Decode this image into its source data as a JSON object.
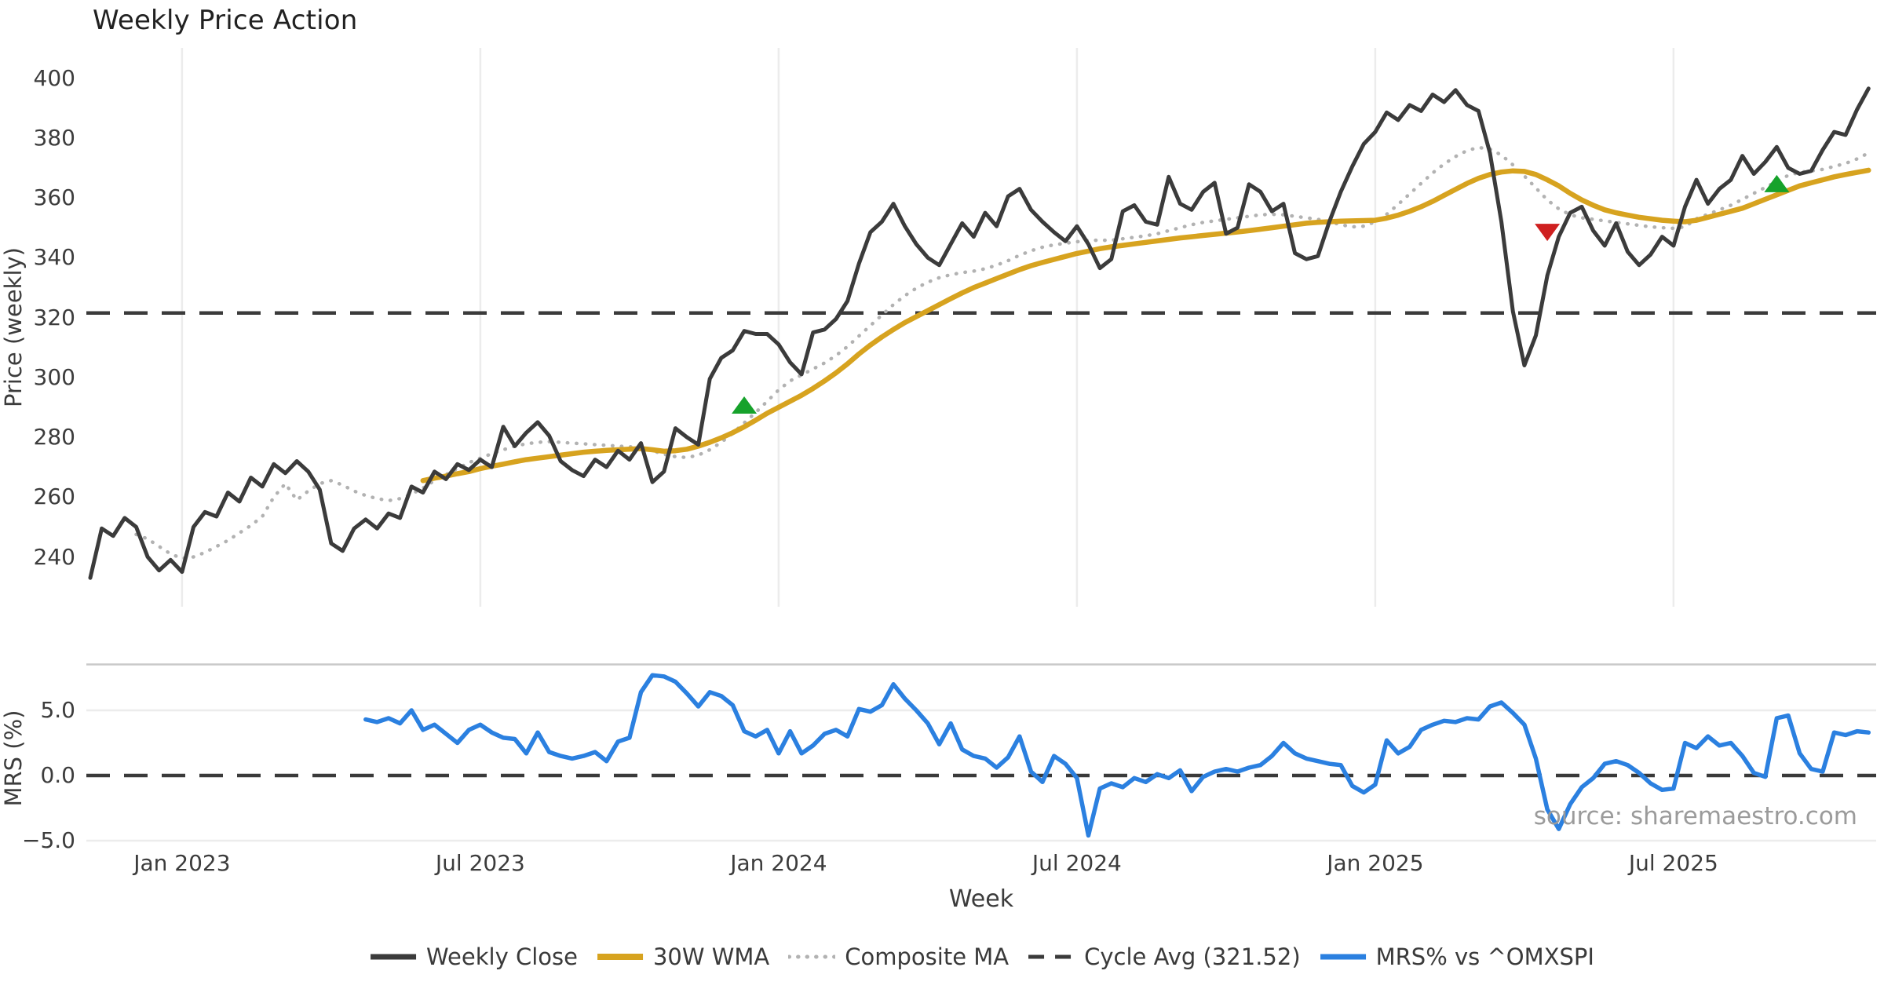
{
  "title": "Weekly Price Action",
  "source_text": "source: sharemaestro.com",
  "colors": {
    "close": "#3b3b3b",
    "wma": "#d7a31f",
    "composite": "#b2b2b2",
    "dashed": "#3a3a3a",
    "mrs": "#2b80e0",
    "buy": "#16a22b",
    "sell": "#cf2020",
    "grid": "#ececec",
    "panel_border": "#c9c9c9"
  },
  "legend": {
    "items": [
      {
        "label": "Weekly Close",
        "style": "solid",
        "color": "#3b3b3b",
        "thickness": 7
      },
      {
        "label": "30W WMA",
        "style": "solid",
        "color": "#d7a31f",
        "thickness": 8
      },
      {
        "label": "Composite MA",
        "style": "dotted",
        "color": "#b2b2b2",
        "thickness": 5
      },
      {
        "label": "Cycle Avg (321.52)",
        "style": "dashed",
        "color": "#3a3a3a",
        "thickness": 5
      },
      {
        "label": "MRS% vs ^OMXSPI",
        "style": "solid",
        "color": "#2b80e0",
        "thickness": 7
      }
    ]
  },
  "chart_data": {
    "type": "line",
    "x_axis": {
      "label": "Week",
      "ticks": [
        {
          "label": "Jan 2023",
          "week_index": 8
        },
        {
          "label": "Jul 2023",
          "week_index": 34
        },
        {
          "label": "Jan 2024",
          "week_index": 60
        },
        {
          "label": "Jul 2024",
          "week_index": 86
        },
        {
          "label": "Jan 2025",
          "week_index": 112
        },
        {
          "label": "Jul 2025",
          "week_index": 138
        }
      ],
      "weeks_total": 156
    },
    "panels": [
      {
        "id": "price",
        "ylabel": "Price (weekly)",
        "ylim": [
          223,
          410
        ],
        "yticks": [
          240,
          260,
          280,
          300,
          320,
          340,
          360,
          380,
          400
        ],
        "grid": "vertical",
        "reference_line": {
          "name": "Cycle Avg",
          "value": 321.52,
          "style": "dashed"
        },
        "series": [
          {
            "name": "Weekly Close",
            "start_week": 0,
            "values": [
              233,
              249.5,
              247,
              253,
              250,
              240,
              235.5,
              239,
              235,
              250,
              255,
              253.5,
              261.5,
              258.5,
              266.5,
              263.5,
              271,
              268,
              272,
              268.5,
              262.5,
              244.5,
              242,
              249.5,
              252.5,
              249.5,
              254.5,
              253,
              263.5,
              261.5,
              268.5,
              266,
              271,
              269,
              272.5,
              270,
              283.5,
              277,
              281.5,
              285,
              280.5,
              272,
              269,
              267,
              272.5,
              270,
              275.5,
              272.5,
              278,
              265,
              268.5,
              283,
              280,
              277.5,
              299.5,
              306.5,
              309,
              315.5,
              314.5,
              314.5,
              311,
              305,
              301,
              315,
              316,
              319.5,
              325.5,
              338,
              348.5,
              352,
              358,
              350.5,
              344.5,
              340,
              337.5,
              344.5,
              351.5,
              347,
              355,
              350.5,
              360.5,
              363,
              356,
              352,
              348.5,
              345.5,
              350.5,
              344.5,
              336.5,
              339.5,
              355.5,
              357.5,
              352,
              351,
              367,
              358,
              356,
              362,
              365,
              348,
              350,
              364.5,
              362,
              355.5,
              358,
              341.5,
              339.5,
              340.5,
              352,
              362,
              370.5,
              378,
              382,
              388.5,
              386,
              391,
              389,
              394.5,
              392,
              396,
              391,
              389,
              375,
              352,
              322,
              304,
              314,
              334,
              347,
              355,
              357,
              349,
              344,
              351.5,
              342,
              337.5,
              341,
              347,
              344,
              357,
              366,
              358,
              363,
              366,
              374,
              368,
              372,
              377,
              370,
              368,
              369,
              376,
              382,
              381,
              389.5,
              396.5
            ]
          },
          {
            "name": "30W WMA",
            "start_week": 29,
            "values": [
              265.5,
              266.3,
              267,
              267.8,
              268.5,
              269.5,
              270.3,
              271,
              271.8,
              272.5,
              273,
              273.5,
              274,
              274.5,
              275,
              275.3,
              275.6,
              275.8,
              276,
              276.2,
              275.8,
              275.3,
              275.5,
              276,
              277,
              278.3,
              279.8,
              281.5,
              283.5,
              285.7,
              288,
              290,
              292,
              294,
              296.3,
              298.8,
              301.5,
              304.5,
              307.8,
              310.8,
              313.5,
              316,
              318.3,
              320.3,
              322.3,
              324.3,
              326.3,
              328.2,
              330,
              331.5,
              333,
              334.5,
              336,
              337.3,
              338.4,
              339.4,
              340.4,
              341.4,
              342.2,
              343,
              343.6,
              344.1,
              344.6,
              345.1,
              345.6,
              346.1,
              346.6,
              347,
              347.4,
              347.8,
              348.2,
              348.6,
              349,
              349.5,
              350,
              350.5,
              351,
              351.5,
              351.8,
              352,
              352.2,
              352.3,
              352.4,
              352.5,
              353.2,
              354.2,
              355.5,
              357,
              358.8,
              360.8,
              362.8,
              364.8,
              366.5,
              367.8,
              368.6,
              369,
              368.8,
              367.8,
              366,
              364,
              361.5,
              359.3,
              357.5,
              356,
              355,
              354.2,
              353.5,
              353,
              352.5,
              352.2,
              352,
              352.5,
              353.5,
              354.5,
              355.5,
              356.5,
              358,
              359.5,
              361,
              362.5,
              364,
              365,
              366,
              367,
              367.8,
              368.5,
              369.2
            ]
          },
          {
            "name": "Composite MA",
            "start_week": 4,
            "values": [
              247.5,
              246,
              243.5,
              241,
              239.5,
              240,
              241.5,
              243.5,
              245.5,
              248,
              250.5,
              253.5,
              260,
              264.5,
              259,
              262,
              264.5,
              265.5,
              264,
              262,
              260.5,
              259.5,
              258.8,
              259.5,
              261,
              263,
              265.5,
              267.5,
              269.5,
              271.5,
              273,
              274.5,
              275.8,
              277,
              277.8,
              278.3,
              278.5,
              278.3,
              278,
              277.8,
              277.5,
              277.3,
              277,
              276.8,
              276.5,
              275.5,
              274.3,
              273.5,
              273.2,
              274,
              275.8,
              278.3,
              281.3,
              284.8,
              288.3,
              292,
              295.8,
              298.8,
              300.8,
              302.8,
              304.8,
              307.3,
              310.3,
              313.8,
              317.3,
              320.8,
              324.3,
              327.3,
              329.8,
              331.8,
              333.3,
              334.3,
              335,
              335.5,
              336.3,
              337.5,
              339,
              340.8,
              342.3,
              343.5,
              344.3,
              344.8,
              345.3,
              345.8,
              345.8,
              345.8,
              346.3,
              346.8,
              347.3,
              348,
              349,
              350,
              351,
              351.8,
              352.3,
              352.8,
              353.3,
              353.8,
              354.3,
              354.5,
              354.3,
              353.8,
              353.3,
              352.8,
              352,
              351,
              350.3,
              350.5,
              352,
              354.5,
              357.8,
              361.3,
              364.8,
              368.3,
              371.3,
              373.8,
              375.8,
              376.8,
              376.3,
              374.3,
              371,
              367.3,
              363.3,
              359.3,
              356.3,
              354.3,
              353.3,
              352.8,
              352.3,
              351.8,
              351.3,
              350.8,
              350.3,
              350,
              349.8,
              350.3,
              353,
              354.5,
              356,
              357.5,
              359.5,
              361.5,
              363.5,
              365.5,
              367.5,
              368.5,
              369,
              369.5,
              370.5,
              371.5,
              373,
              375
            ]
          }
        ],
        "signals": [
          {
            "type": "buy",
            "week_index": 57,
            "price": 290.5
          },
          {
            "type": "sell",
            "week_index": 127,
            "price": 348.7
          },
          {
            "type": "buy",
            "week_index": 147,
            "price": 364.5
          }
        ]
      },
      {
        "id": "mrs",
        "ylabel": "MRS (%)",
        "ylim": [
          -5.8,
          8.6
        ],
        "yticks": [
          -5,
          0,
          5
        ],
        "ytick_labels": [
          "−5.0",
          "0.0",
          "5.0"
        ],
        "grid": "horizontal",
        "reference_line": {
          "name": "Zero",
          "value": 0,
          "style": "dashed"
        },
        "series": [
          {
            "name": "MRS% vs ^OMXSPI",
            "start_week": 24,
            "values": [
              4.3,
              4.1,
              4.4,
              4.0,
              5.0,
              3.5,
              3.9,
              3.2,
              2.5,
              3.5,
              3.9,
              3.3,
              2.9,
              2.8,
              1.7,
              3.3,
              1.8,
              1.5,
              1.3,
              1.5,
              1.8,
              1.1,
              2.6,
              2.9,
              6.4,
              7.7,
              7.6,
              7.2,
              6.3,
              5.3,
              6.4,
              6.1,
              5.4,
              3.4,
              3.0,
              3.5,
              1.7,
              3.4,
              1.7,
              2.3,
              3.2,
              3.5,
              3.0,
              5.1,
              4.9,
              5.4,
              7.0,
              5.9,
              5.0,
              4.0,
              2.4,
              4.0,
              2.0,
              1.5,
              1.3,
              0.6,
              1.4,
              3.0,
              0.3,
              -0.5,
              1.5,
              0.9,
              -0.2,
              -4.6,
              -1.0,
              -0.6,
              -0.9,
              -0.2,
              -0.5,
              0.1,
              -0.2,
              0.4,
              -1.2,
              -0.1,
              0.3,
              0.5,
              0.3,
              0.6,
              0.8,
              1.5,
              2.5,
              1.7,
              1.3,
              1.1,
              0.9,
              0.8,
              -0.8,
              -1.3,
              -0.7,
              2.7,
              1.7,
              2.2,
              3.5,
              3.9,
              4.2,
              4.1,
              4.4,
              4.3,
              5.3,
              5.6,
              4.8,
              3.9,
              1.3,
              -2.6,
              -4.1,
              -2.2,
              -0.9,
              -0.2,
              0.9,
              1.1,
              0.8,
              0.2,
              -0.6,
              -1.1,
              -1.0,
              2.5,
              2.1,
              3.0,
              2.3,
              2.5,
              1.5,
              0.2,
              -0.1,
              4.4,
              4.6,
              1.7,
              0.5,
              0.3,
              3.3,
              3.1,
              3.4,
              3.3
            ]
          }
        ]
      }
    ]
  }
}
